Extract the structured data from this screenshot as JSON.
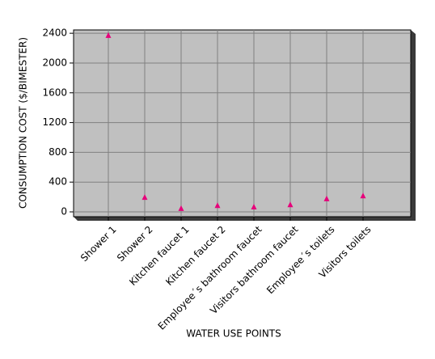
{
  "chart_data": {
    "type": "scatter",
    "x_label": "WATER USE POINTS",
    "y_label": "CONSUMPTION COST ($/BIMESTER)",
    "categories": [
      "Shower 1",
      "Shower 2",
      "Kitchen faucet 1",
      "Kitchen faucet 2",
      "Employee´s bathroom faucet",
      "Visitors bathroom faucet",
      "Employee´s toilets",
      "Visitors toilets"
    ],
    "values": [
      2370,
      195,
      45,
      85,
      65,
      95,
      175,
      215
    ],
    "color": "#e6007a",
    "ylim": [
      -65,
      2445
    ],
    "yticks": [
      0,
      400,
      800,
      1200,
      1600,
      2000,
      2400
    ],
    "grid": true
  }
}
